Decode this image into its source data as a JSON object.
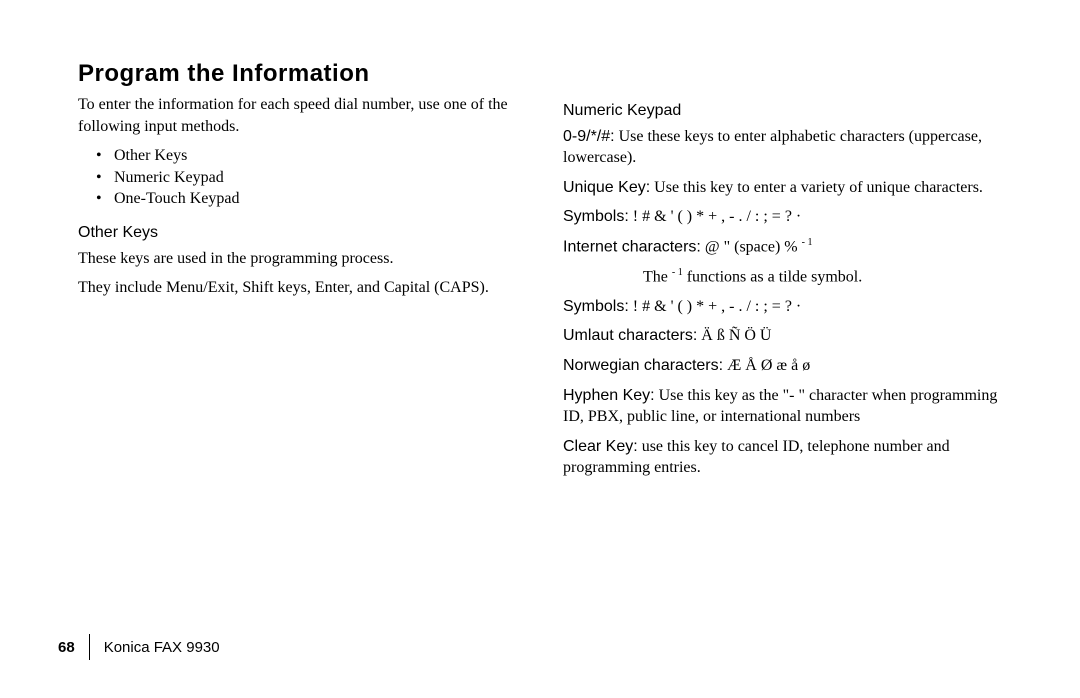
{
  "title": "Program the Information",
  "left": {
    "intro": "To enter the information for each speed dial number, use one of the following input methods.",
    "bullets": [
      "Other Keys",
      "Numeric Keypad",
      "One-Touch Keypad"
    ],
    "otherKeys": {
      "heading": "Other Keys",
      "p1": "These keys are used in the programming process.",
      "p2": "They include Menu/Exit, Shift keys, Enter, and Capital (CAPS)."
    }
  },
  "right": {
    "heading": "Numeric Keypad",
    "numKeys": {
      "label": "0-9/*/#:",
      "text": " Use these keys to enter alphabetic characters (uppercase, lowercase)."
    },
    "uniqueKey": {
      "label": "Unique Key:",
      "text": " Use this key to enter a variety of unique characters."
    },
    "symbols1": {
      "label": "Symbols:",
      "text": " ! # & ' ( ) * + , - . / : ; = ? ·"
    },
    "internet": {
      "label": "Internet characters:",
      "text": " @ \" (space) % ",
      "sup": "- 1"
    },
    "tilde": {
      "pre": "The ",
      "sup": "- 1",
      "post": " functions as a tilde symbol."
    },
    "symbols2": {
      "label": "Symbols:",
      "text": " ! # & ' ( ) * + , - . / : ; = ? ·"
    },
    "umlaut": {
      "label": "Umlaut characters:",
      "text": " Ä ß Ñ Ö Ü"
    },
    "norwegian": {
      "label": "Norwegian characters:",
      "text": " Æ Å Ø æ å ø"
    },
    "hyphen": {
      "label": "Hyphen Key:",
      "text": " Use this key as the \"- \" character when programming ID, PBX, public line, or international numbers"
    },
    "clear": {
      "label": "Clear Key:",
      "text": " use this key to cancel ID, telephone number and programming entries."
    }
  },
  "footer": {
    "page": "68",
    "product": "Konica FAX 9930"
  }
}
